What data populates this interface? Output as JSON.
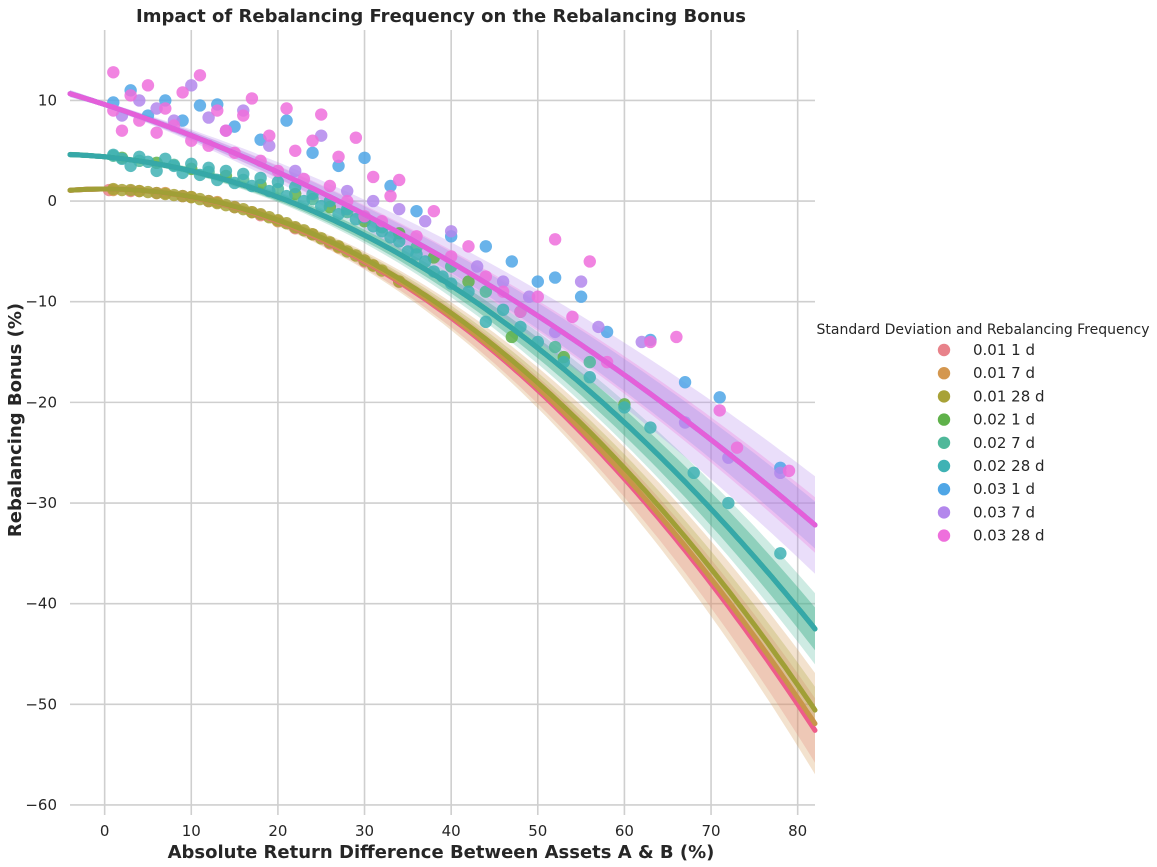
{
  "chart_data": {
    "type": "scatter",
    "title": "Impact of Rebalancing Frequency on the Rebalancing Bonus",
    "xlabel": "Absolute Return Difference Between Assets A & B (%)",
    "ylabel": "Rebalancing Bonus (%)",
    "xlim": [
      -4,
      82
    ],
    "ylim": [
      -61,
      17
    ],
    "xticks": [
      0,
      10,
      20,
      30,
      40,
      50,
      60,
      70,
      80
    ],
    "yticks": [
      10,
      0,
      -10,
      -20,
      -30,
      -40,
      -50,
      -60
    ],
    "xtick_labels": [
      "0",
      "10",
      "20",
      "30",
      "40",
      "50",
      "60",
      "70",
      "80"
    ],
    "ytick_labels": [
      "10",
      "0",
      "−10",
      "−20",
      "−30",
      "−40",
      "−50",
      "−60"
    ],
    "grid": true,
    "legend": {
      "title": "Standard Deviation and Rebalancing Frequency",
      "placement": "right"
    },
    "series": [
      {
        "name": "0.01 1 d",
        "color": "#e8828a",
        "line_color": "#ee5c8a",
        "fit": [
          1.2,
          0.0,
          -0.008
        ],
        "ci_spread": 0.055,
        "points": [
          [
            0.5,
            1.1
          ],
          [
            3,
            1.0
          ],
          [
            6,
            0.8
          ],
          [
            9,
            0.5
          ],
          [
            12,
            0.0
          ],
          [
            15,
            -0.6
          ],
          [
            18,
            -1.4
          ],
          [
            22,
            -2.7
          ],
          [
            26,
            -4.2
          ],
          [
            30,
            -6.0
          ],
          [
            34,
            -8.0
          ]
        ]
      },
      {
        "name": "0.01 7 d",
        "color": "#d4974f",
        "line_color": "#c8954a",
        "fit": [
          1.2,
          0.0,
          -0.0079
        ],
        "ci_spread": 0.09,
        "points": [
          [
            1,
            1.1
          ],
          [
            4,
            1.0
          ],
          [
            7,
            0.8
          ],
          [
            10,
            0.4
          ],
          [
            13,
            -0.1
          ],
          [
            17,
            -1.1
          ],
          [
            20,
            -2.0
          ],
          [
            24,
            -3.3
          ],
          [
            27,
            -4.6
          ],
          [
            31,
            -6.4
          ]
        ]
      },
      {
        "name": "0.01 28 d",
        "color": "#a8a237",
        "line_color": "#a09f36",
        "fit": [
          1.2,
          0.0,
          -0.0077
        ],
        "ci_spread": 0.04,
        "points": [
          [
            1,
            1.2
          ],
          [
            2,
            1.1
          ],
          [
            3,
            1.1
          ],
          [
            4,
            1.0
          ],
          [
            5,
            0.9
          ],
          [
            6,
            0.8
          ],
          [
            7,
            0.7
          ],
          [
            8,
            0.6
          ],
          [
            9,
            0.5
          ],
          [
            10,
            0.4
          ],
          [
            11,
            0.2
          ],
          [
            12,
            0.0
          ],
          [
            13,
            -0.2
          ],
          [
            14,
            -0.4
          ],
          [
            15,
            -0.6
          ],
          [
            16,
            -0.8
          ],
          [
            17,
            -1.1
          ],
          [
            18,
            -1.3
          ],
          [
            19,
            -1.6
          ],
          [
            20,
            -1.9
          ],
          [
            21,
            -2.2
          ],
          [
            22,
            -2.6
          ],
          [
            23,
            -2.9
          ],
          [
            24,
            -3.3
          ],
          [
            25,
            -3.7
          ],
          [
            26,
            -4.1
          ],
          [
            27,
            -4.5
          ],
          [
            28,
            -5.0
          ],
          [
            29,
            -5.4
          ],
          [
            30,
            -5.9
          ],
          [
            31,
            -6.4
          ],
          [
            32,
            -6.9
          ],
          [
            34,
            -8.0
          ]
        ]
      },
      {
        "name": "0.02 1 d",
        "color": "#5fb14a",
        "line_color": "#4fae6a",
        "fit": [
          4.4,
          -0.08,
          -0.006
        ],
        "ci_spread": 0.04,
        "points": [
          [
            2,
            4.3
          ],
          [
            6,
            3.8
          ],
          [
            10,
            3.2
          ],
          [
            14,
            2.5
          ],
          [
            18,
            1.6
          ],
          [
            22,
            0.7
          ],
          [
            26,
            -0.6
          ],
          [
            30,
            -2.0
          ],
          [
            34,
            -3.2
          ],
          [
            38,
            -5.6
          ],
          [
            42,
            -8.0
          ],
          [
            47,
            -13.5
          ],
          [
            53,
            -15.5
          ],
          [
            60,
            -20.2
          ]
        ]
      },
      {
        "name": "0.02 7 d",
        "color": "#4fb89a",
        "line_color": "#3aae8f",
        "fit": [
          4.4,
          -0.08,
          -0.006
        ],
        "ci_spread": 0.07,
        "points": [
          [
            1,
            4.5
          ],
          [
            4,
            4.0
          ],
          [
            8,
            3.6
          ],
          [
            12,
            2.9
          ],
          [
            16,
            2.1
          ],
          [
            20,
            1.2
          ],
          [
            24,
            0.2
          ],
          [
            28,
            -1.1
          ],
          [
            32,
            -2.6
          ],
          [
            36,
            -4.6
          ],
          [
            40,
            -6.5
          ],
          [
            44,
            -9.0
          ],
          [
            48,
            -11.0
          ],
          [
            52,
            -14.5
          ],
          [
            56,
            -16.0
          ]
        ]
      },
      {
        "name": "0.02 28 d",
        "color": "#3fb2b4",
        "line_color": "#36a8a8",
        "fit": [
          4.4,
          -0.08,
          -0.006
        ],
        "ci_spread": 0.04,
        "points": [
          [
            1,
            4.6
          ],
          [
            2,
            4.2
          ],
          [
            3,
            3.5
          ],
          [
            4,
            4.4
          ],
          [
            5,
            3.9
          ],
          [
            6,
            3.0
          ],
          [
            7,
            4.2
          ],
          [
            8,
            3.5
          ],
          [
            9,
            2.8
          ],
          [
            10,
            3.7
          ],
          [
            11,
            2.6
          ],
          [
            12,
            3.3
          ],
          [
            13,
            2.1
          ],
          [
            14,
            3.0
          ],
          [
            15,
            1.8
          ],
          [
            16,
            2.7
          ],
          [
            17,
            1.5
          ],
          [
            18,
            2.3
          ],
          [
            19,
            1.0
          ],
          [
            20,
            1.9
          ],
          [
            21,
            0.5
          ],
          [
            22,
            1.4
          ],
          [
            23,
            0.0
          ],
          [
            24,
            0.7
          ],
          [
            25,
            -0.5
          ],
          [
            26,
            0.0
          ],
          [
            27,
            -1.3
          ],
          [
            28,
            -0.8
          ],
          [
            29,
            -1.8
          ],
          [
            30,
            -1.6
          ],
          [
            31,
            -2.5
          ],
          [
            32,
            -3.0
          ],
          [
            33,
            -3.6
          ],
          [
            34,
            -4.0
          ],
          [
            35,
            -5.0
          ],
          [
            36,
            -5.3
          ],
          [
            37,
            -6.0
          ],
          [
            38,
            -7.0
          ],
          [
            39,
            -7.5
          ],
          [
            40,
            -8.2
          ],
          [
            42,
            -9.0
          ],
          [
            44,
            -12.0
          ],
          [
            46,
            -10.8
          ],
          [
            48,
            -12.5
          ],
          [
            50,
            -14.0
          ],
          [
            53,
            -16.0
          ],
          [
            56,
            -17.5
          ],
          [
            60,
            -20.5
          ],
          [
            63,
            -22.5
          ],
          [
            68,
            -27.0
          ],
          [
            72,
            -30.0
          ],
          [
            78,
            -35.0
          ]
        ]
      },
      {
        "name": "0.03 1 d",
        "color": "#4fa6e6",
        "line_color": "#4f9ee0",
        "fit": [
          9.6,
          -0.28,
          -0.0028
        ],
        "ci_spread": 0.05,
        "points": [
          [
            1,
            9.8
          ],
          [
            3,
            11.0
          ],
          [
            5,
            8.5
          ],
          [
            7,
            10.0
          ],
          [
            9,
            8.0
          ],
          [
            11,
            9.5
          ],
          [
            13,
            9.6
          ],
          [
            15,
            7.4
          ],
          [
            18,
            6.1
          ],
          [
            21,
            8.0
          ],
          [
            24,
            4.8
          ],
          [
            27,
            3.5
          ],
          [
            30,
            4.3
          ],
          [
            33,
            1.5
          ],
          [
            36,
            -1.0
          ],
          [
            40,
            -3.5
          ],
          [
            44,
            -4.5
          ],
          [
            47,
            -6.0
          ],
          [
            50,
            -8.0
          ],
          [
            52,
            -7.6
          ],
          [
            55,
            -9.5
          ],
          [
            58,
            -13.0
          ],
          [
            63,
            -13.8
          ],
          [
            67,
            -18.0
          ],
          [
            71,
            -19.5
          ],
          [
            78,
            -26.5
          ]
        ]
      },
      {
        "name": "0.03 7 d",
        "color": "#b387ec",
        "line_color": "#b884ea",
        "fit": [
          9.6,
          -0.28,
          -0.0028
        ],
        "ci_spread": 0.11,
        "points": [
          [
            2,
            8.5
          ],
          [
            4,
            10.0
          ],
          [
            6,
            9.2
          ],
          [
            8,
            8.0
          ],
          [
            10,
            11.5
          ],
          [
            12,
            8.3
          ],
          [
            14,
            7.0
          ],
          [
            16,
            9.0
          ],
          [
            19,
            5.5
          ],
          [
            22,
            3.0
          ],
          [
            25,
            6.5
          ],
          [
            28,
            1.0
          ],
          [
            31,
            0.0
          ],
          [
            34,
            -0.8
          ],
          [
            37,
            -2.0
          ],
          [
            40,
            -3.0
          ],
          [
            43,
            -6.5
          ],
          [
            46,
            -8.0
          ],
          [
            49,
            -9.5
          ],
          [
            52,
            -13.0
          ],
          [
            55,
            -8.0
          ],
          [
            57,
            -12.5
          ],
          [
            62,
            -14.0
          ],
          [
            67,
            -22.0
          ],
          [
            72,
            -25.5
          ],
          [
            78,
            -27.0
          ]
        ]
      },
      {
        "name": "0.03 28 d",
        "color": "#ee6fdc",
        "line_color": "#e45fd9",
        "fit": [
          9.6,
          -0.28,
          -0.0028
        ],
        "ci_spread": 0.06,
        "points": [
          [
            1,
            12.8
          ],
          [
            1,
            9.0
          ],
          [
            2,
            7.0
          ],
          [
            3,
            10.5
          ],
          [
            4,
            8.0
          ],
          [
            5,
            11.5
          ],
          [
            6,
            6.8
          ],
          [
            7,
            9.2
          ],
          [
            8,
            7.5
          ],
          [
            9,
            10.8
          ],
          [
            10,
            6.0
          ],
          [
            11,
            12.5
          ],
          [
            12,
            5.5
          ],
          [
            13,
            9.0
          ],
          [
            14,
            7.0
          ],
          [
            15,
            4.8
          ],
          [
            16,
            8.5
          ],
          [
            17,
            10.2
          ],
          [
            18,
            4.0
          ],
          [
            19,
            6.5
          ],
          [
            20,
            3.0
          ],
          [
            21,
            9.2
          ],
          [
            22,
            5.0
          ],
          [
            23,
            2.2
          ],
          [
            24,
            6.0
          ],
          [
            25,
            8.6
          ],
          [
            26,
            1.5
          ],
          [
            27,
            4.4
          ],
          [
            28,
            0.0
          ],
          [
            29,
            6.3
          ],
          [
            30,
            -1.5
          ],
          [
            31,
            2.4
          ],
          [
            32,
            -2.0
          ],
          [
            33,
            0.5
          ],
          [
            34,
            2.1
          ],
          [
            36,
            -3.5
          ],
          [
            38,
            -1.0
          ],
          [
            40,
            -5.5
          ],
          [
            42,
            -4.5
          ],
          [
            44,
            -7.5
          ],
          [
            46,
            -9.0
          ],
          [
            48,
            -11.0
          ],
          [
            50,
            -9.5
          ],
          [
            52,
            -3.8
          ],
          [
            54,
            -11.5
          ],
          [
            56,
            -6.0
          ],
          [
            58,
            -16.0
          ],
          [
            63,
            -14.0
          ],
          [
            66,
            -13.5
          ],
          [
            71,
            -20.8
          ],
          [
            73,
            -24.5
          ],
          [
            79,
            -26.8
          ]
        ]
      }
    ]
  }
}
